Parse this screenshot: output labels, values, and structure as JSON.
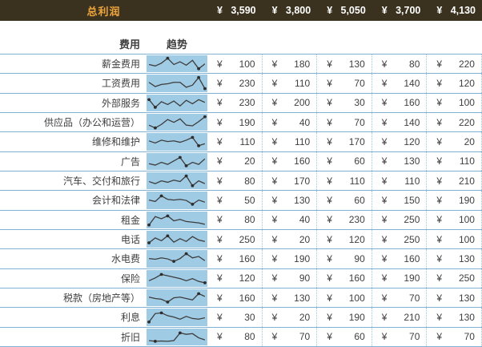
{
  "currency": "¥",
  "header": {
    "title": "总利润",
    "values": [
      "3,590",
      "3,800",
      "5,050",
      "3,700",
      "4,130"
    ]
  },
  "columns": {
    "expense": "费用",
    "trend": "趋势"
  },
  "rows": [
    {
      "label": "薪金费用",
      "values": [
        "100",
        "180",
        "130",
        "80",
        "220"
      ],
      "spark": [
        45,
        35,
        55,
        90,
        45,
        65,
        40,
        75,
        15,
        50
      ]
    },
    {
      "label": "工资费用",
      "values": [
        "230",
        "110",
        "70",
        "140",
        "120"
      ],
      "spark": [
        55,
        25,
        40,
        45,
        55,
        55,
        20,
        35,
        90,
        10
      ]
    },
    {
      "label": "外部服务",
      "values": [
        "230",
        "200",
        "30",
        "160",
        "100"
      ],
      "spark": [
        75,
        20,
        60,
        40,
        65,
        30,
        70,
        45,
        75,
        55
      ]
    },
    {
      "label": "供应品（办公和运营）",
      "values": [
        "190",
        "40",
        "70",
        "140",
        "220"
      ],
      "spark": [
        30,
        10,
        35,
        70,
        50,
        75,
        30,
        25,
        55,
        90
      ]
    },
    {
      "label": "维修和维护",
      "values": [
        "110",
        "110",
        "170",
        "120",
        "20"
      ],
      "spark": [
        55,
        40,
        60,
        50,
        55,
        45,
        60,
        80,
        20,
        35
      ]
    },
    {
      "label": "广告",
      "values": [
        "20",
        "160",
        "60",
        "130",
        "110"
      ],
      "spark": [
        35,
        25,
        45,
        30,
        55,
        80,
        20,
        45,
        30,
        70
      ]
    },
    {
      "label": "汽车、交付和旅行",
      "values": [
        "80",
        "170",
        "110",
        "110",
        "210"
      ],
      "spark": [
        45,
        30,
        50,
        40,
        55,
        45,
        85,
        15,
        50,
        30
      ]
    },
    {
      "label": "会计和法律",
      "values": [
        "50",
        "130",
        "60",
        "150",
        "190"
      ],
      "spark": [
        50,
        40,
        80,
        55,
        50,
        55,
        48,
        20,
        50,
        35
      ]
    },
    {
      "label": "租金",
      "values": [
        "80",
        "40",
        "230",
        "250",
        "100"
      ],
      "spark": [
        15,
        75,
        60,
        80,
        45,
        55,
        40,
        35,
        30,
        20
      ]
    },
    {
      "label": "电话",
      "values": [
        "250",
        "20",
        "120",
        "250",
        "100"
      ],
      "spark": [
        25,
        60,
        40,
        75,
        30,
        55,
        35,
        70,
        45,
        35
      ]
    },
    {
      "label": "水电费",
      "values": [
        "160",
        "190",
        "90",
        "160",
        "130"
      ],
      "spark": [
        50,
        45,
        55,
        48,
        30,
        50,
        85,
        55,
        65,
        35
      ]
    },
    {
      "label": "保险",
      "values": [
        "120",
        "90",
        "160",
        "190",
        "250"
      ],
      "spark": [
        35,
        55,
        80,
        70,
        60,
        50,
        35,
        50,
        30,
        20
      ]
    },
    {
      "label": "税款（房地产等）",
      "values": [
        "160",
        "130",
        "100",
        "70",
        "130"
      ],
      "spark": [
        55,
        45,
        40,
        20,
        50,
        55,
        45,
        35,
        80,
        60
      ]
    },
    {
      "label": "利息",
      "values": [
        "30",
        "20",
        "190",
        "210",
        "130"
      ],
      "spark": [
        15,
        75,
        80,
        60,
        50,
        35,
        55,
        40,
        35,
        45
      ]
    },
    {
      "label": "折旧",
      "values": [
        "80",
        "70",
        "60",
        "70",
        "70"
      ],
      "spark": [
        25,
        20,
        22,
        20,
        25,
        80,
        70,
        75,
        45,
        30
      ]
    }
  ],
  "colors": {
    "header_bg": "#3a321f",
    "header_title_text": "#eda43c",
    "header_value_text": "#ffffff",
    "sparkline_bg": "#a0cbe4",
    "sparkline_line": "#3c3c3c",
    "sparkline_marker": "#2e2e2e",
    "grid_line": "#7fb2d4",
    "grid_dotted_line": "#9cc6de",
    "body_text": "#3f3f3f"
  }
}
